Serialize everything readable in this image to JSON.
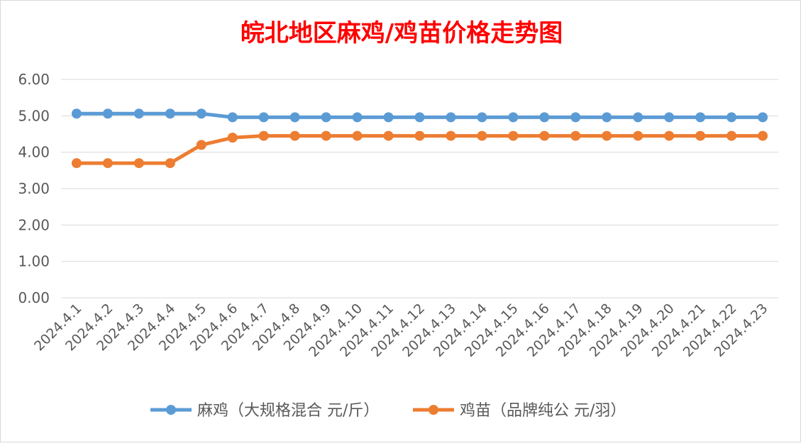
{
  "chart_data": {
    "type": "line",
    "title": "皖北地区麻鸡/鸡苗价格走势图",
    "title_color": "#ff0000",
    "xlabel": "",
    "ylabel": "",
    "ylim": [
      0,
      6
    ],
    "yticks": [
      "0.00",
      "1.00",
      "2.00",
      "3.00",
      "4.00",
      "5.00",
      "6.00"
    ],
    "grid": true,
    "legend_position": "bottom",
    "categories": [
      "2024.4.1",
      "2024.4.2",
      "2024.4.3",
      "2024.4.4",
      "2024.4.5",
      "2024.4.6",
      "2024.4.7",
      "2024.4.8",
      "2024.4.9",
      "2024.4.10",
      "2024.4.11",
      "2024.4.12",
      "2024.4.13",
      "2024.4.14",
      "2024.4.15",
      "2024.4.16",
      "2024.4.17",
      "2024.4.18",
      "2024.4.19",
      "2024.4.20",
      "2024.4.21",
      "2024.4.22",
      "2024.4.23"
    ],
    "series": [
      {
        "name": "麻鸡（大规格混合 元/斤）",
        "color": "#5b9bd5",
        "values": [
          5.06,
          5.06,
          5.06,
          5.06,
          5.06,
          4.96,
          4.96,
          4.96,
          4.96,
          4.96,
          4.96,
          4.96,
          4.96,
          4.96,
          4.96,
          4.96,
          4.96,
          4.96,
          4.96,
          4.96,
          4.96,
          4.96,
          4.96
        ]
      },
      {
        "name": "鸡苗（品牌纯公 元/羽）",
        "color": "#ed7d31",
        "values": [
          3.7,
          3.7,
          3.7,
          3.7,
          4.2,
          4.4,
          4.45,
          4.45,
          4.45,
          4.45,
          4.45,
          4.45,
          4.45,
          4.45,
          4.45,
          4.45,
          4.45,
          4.45,
          4.45,
          4.45,
          4.45,
          4.45,
          4.45
        ]
      }
    ]
  }
}
